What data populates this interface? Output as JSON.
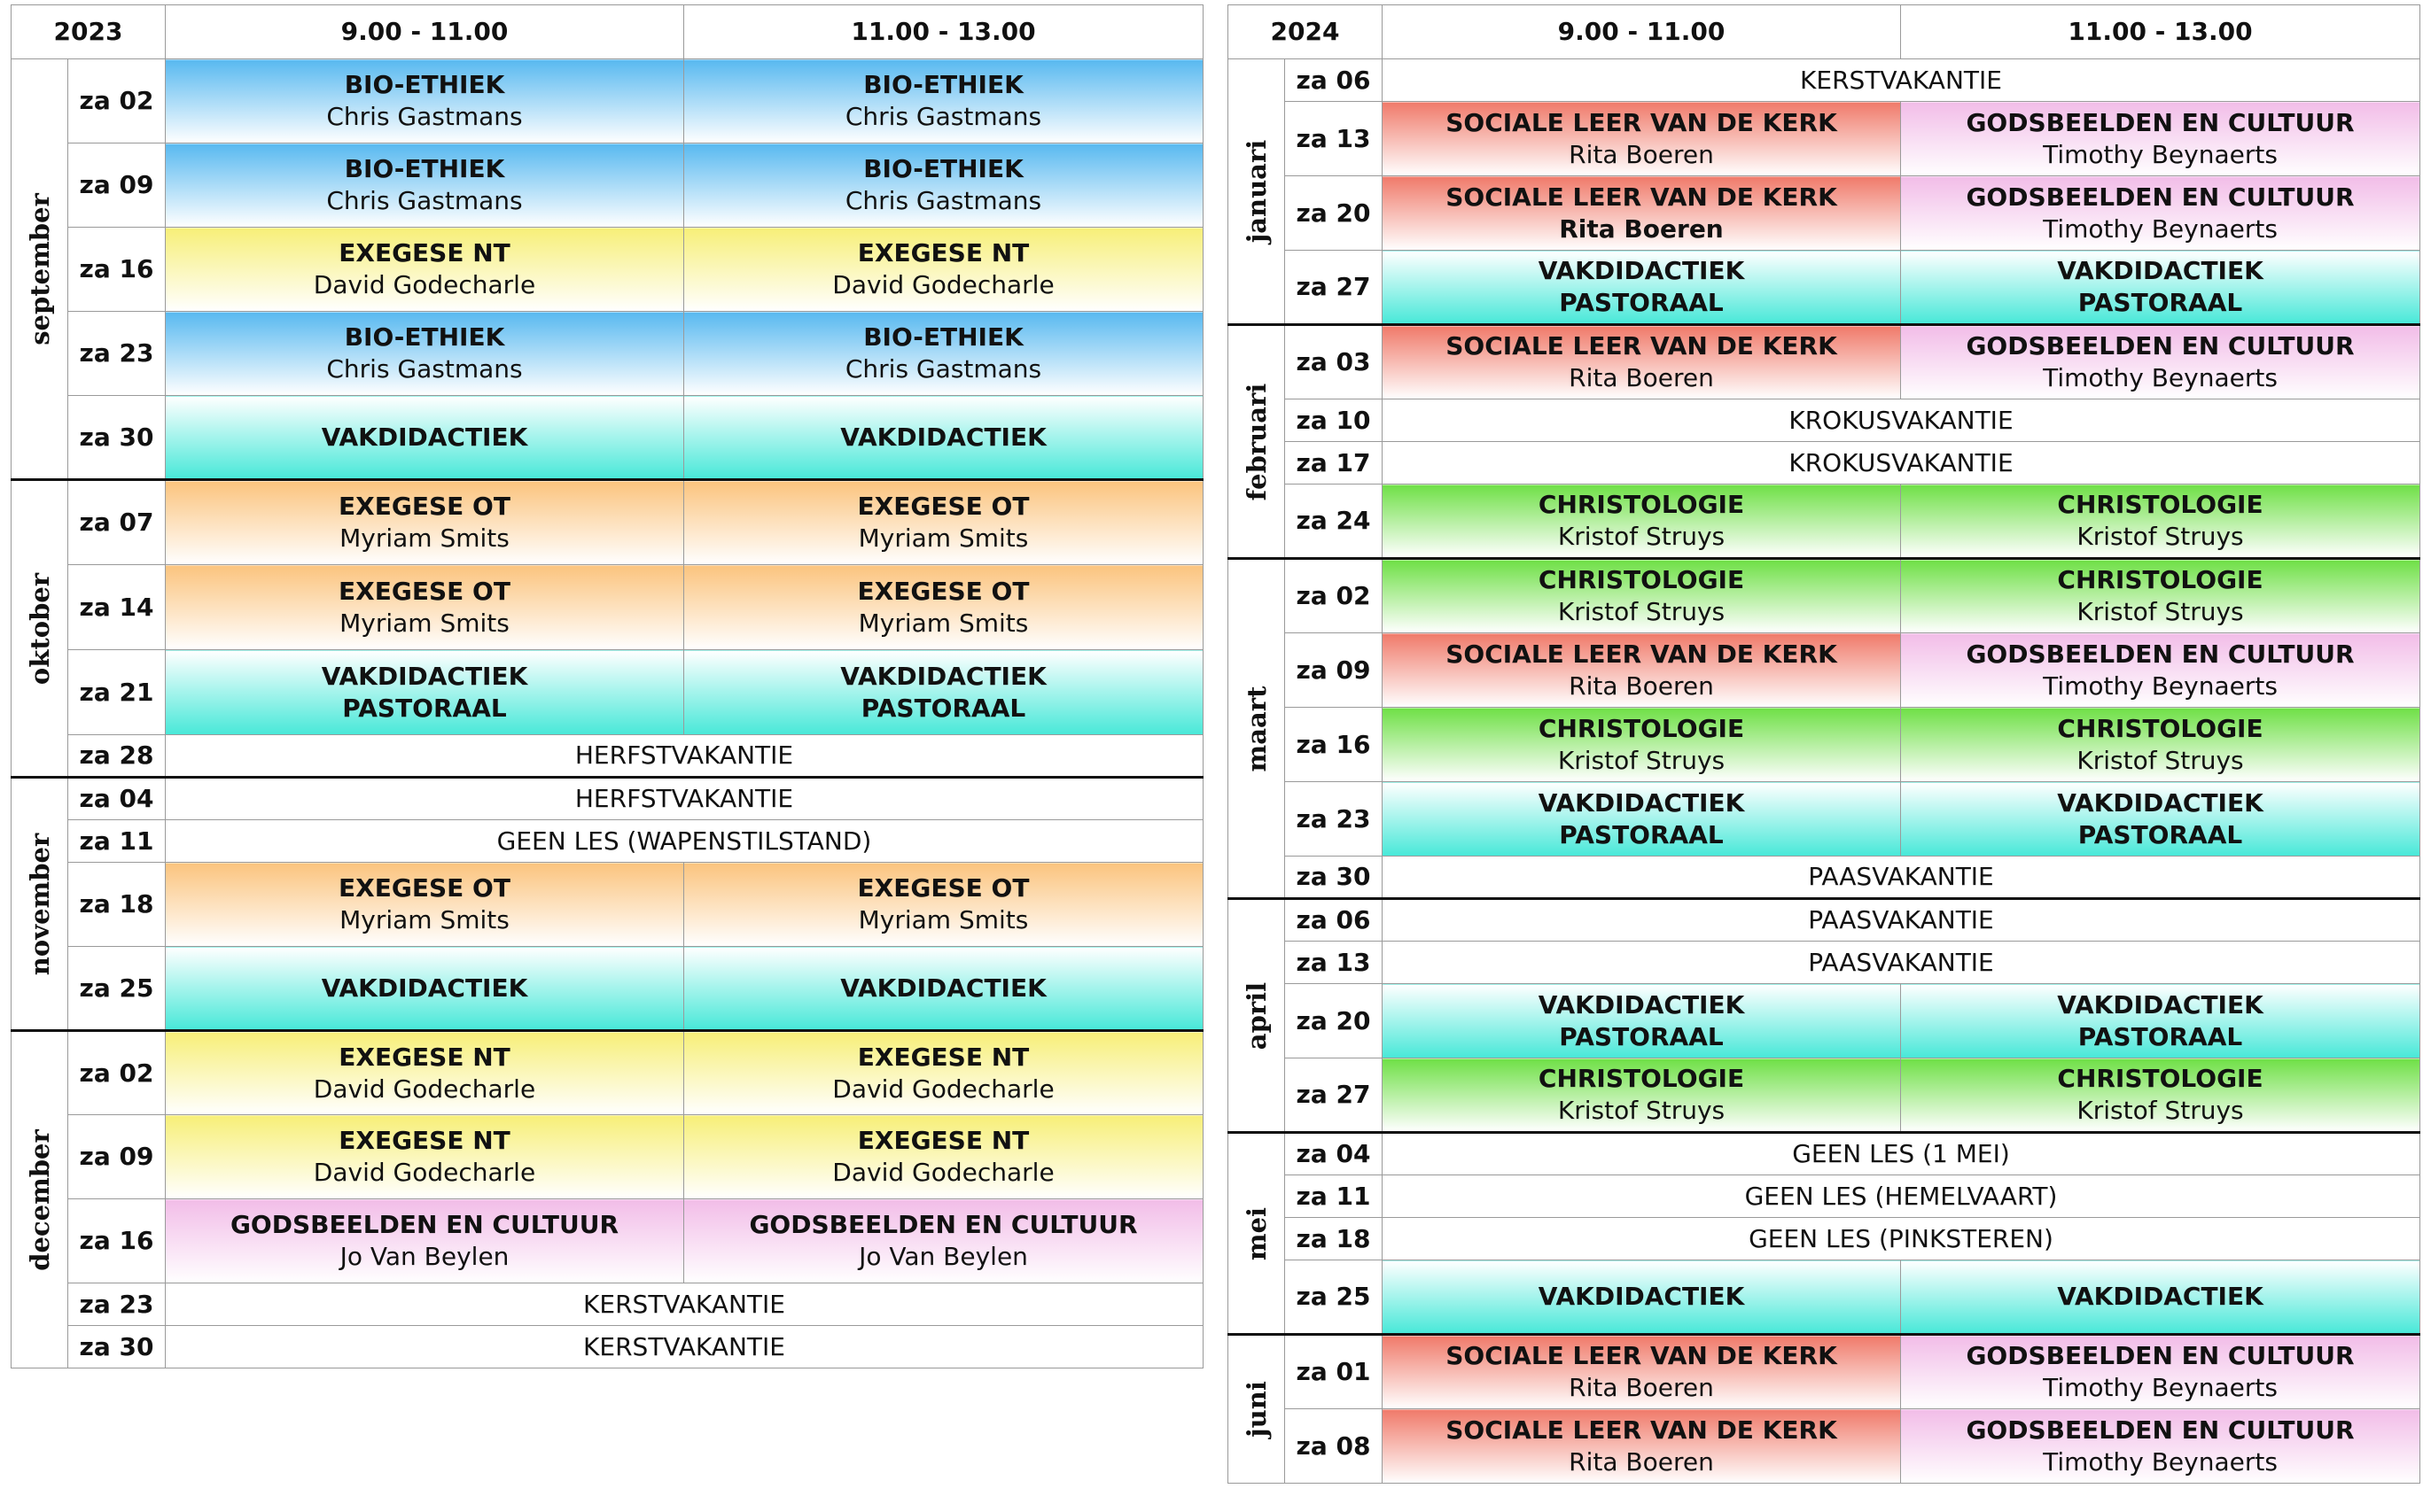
{
  "colors": {
    "c-blue": "#58b9f0",
    "c-yellow": "#f7ef78",
    "c-cyan": "#48e8d8",
    "c-orange": "#fbc47e",
    "c-pink": "#f2bde8",
    "c-red": "#f07a6a",
    "c-green": "#6fe046"
  },
  "tables": [
    {
      "year": "2023",
      "slot1": "9.00 - 11.00",
      "slot2": "11.00 - 13.00",
      "months": [
        {
          "name": "september",
          "rows": [
            {
              "date": "za 02",
              "h": 95,
              "cells": [
                {
                  "course": "BIO-ETHIEK",
                  "teacher": "Chris Gastmans",
                  "color": "c-blue"
                },
                {
                  "course": "BIO-ETHIEK",
                  "teacher": "Chris Gastmans",
                  "color": "c-blue"
                }
              ]
            },
            {
              "date": "za 09",
              "h": 95,
              "cells": [
                {
                  "course": "BIO-ETHIEK",
                  "teacher": "Chris Gastmans",
                  "color": "c-blue"
                },
                {
                  "course": "BIO-ETHIEK",
                  "teacher": "Chris Gastmans",
                  "color": "c-blue"
                }
              ]
            },
            {
              "date": "za 16",
              "h": 95,
              "cells": [
                {
                  "course": "EXEGESE NT",
                  "teacher": "David Godecharle",
                  "color": "c-yellow"
                },
                {
                  "course": "EXEGESE NT",
                  "teacher": "David Godecharle",
                  "color": "c-yellow"
                }
              ]
            },
            {
              "date": "za 23",
              "h": 95,
              "cells": [
                {
                  "course": "BIO-ETHIEK",
                  "teacher": "Chris Gastmans",
                  "color": "c-blue"
                },
                {
                  "course": "BIO-ETHIEK",
                  "teacher": "Chris Gastmans",
                  "color": "c-blue"
                }
              ]
            },
            {
              "date": "za 30",
              "h": 95,
              "cells": [
                {
                  "course": "VAKDIDACTIEK",
                  "teacher": "",
                  "color": "c-cyan"
                },
                {
                  "course": "VAKDIDACTIEK",
                  "teacher": "",
                  "color": "c-cyan"
                }
              ]
            }
          ]
        },
        {
          "name": "oktober",
          "rows": [
            {
              "date": "za 07",
              "h": 96,
              "cells": [
                {
                  "course": "EXEGESE OT",
                  "teacher": "Myriam Smits",
                  "color": "c-orange"
                },
                {
                  "course": "EXEGESE OT",
                  "teacher": "Myriam Smits",
                  "color": "c-orange"
                }
              ]
            },
            {
              "date": "za 14",
              "h": 96,
              "cells": [
                {
                  "course": "EXEGESE OT",
                  "teacher": "Myriam Smits",
                  "color": "c-orange"
                },
                {
                  "course": "EXEGESE OT",
                  "teacher": "Myriam Smits",
                  "color": "c-orange"
                }
              ]
            },
            {
              "date": "za 21",
              "h": 96,
              "cells": [
                {
                  "course": "VAKDIDACTIEK",
                  "teacher": "PASTORAAL",
                  "teacherBold": true,
                  "color": "c-cyan"
                },
                {
                  "course": "VAKDIDACTIEK",
                  "teacher": "PASTORAAL",
                  "teacherBold": true,
                  "color": "c-cyan"
                }
              ]
            },
            {
              "date": "za 28",
              "h": 48,
              "span": "HERFSTVAKANTIE"
            }
          ]
        },
        {
          "name": "november",
          "rows": [
            {
              "date": "za 04",
              "h": 48,
              "span": "HERFSTVAKANTIE"
            },
            {
              "date": "za 11",
              "h": 48,
              "span": "GEEN LES (WAPENSTILSTAND)"
            },
            {
              "date": "za 18",
              "h": 95,
              "cells": [
                {
                  "course": "EXEGESE OT",
                  "teacher": "Myriam Smits",
                  "color": "c-orange"
                },
                {
                  "course": "EXEGESE OT",
                  "teacher": "Myriam Smits",
                  "color": "c-orange"
                }
              ]
            },
            {
              "date": "za 25",
              "h": 95,
              "cells": [
                {
                  "course": "VAKDIDACTIEK",
                  "teacher": "",
                  "color": "c-cyan"
                },
                {
                  "course": "VAKDIDACTIEK",
                  "teacher": "",
                  "color": "c-cyan"
                }
              ]
            }
          ]
        },
        {
          "name": "december",
          "rows": [
            {
              "date": "za 02",
              "h": 95,
              "cells": [
                {
                  "course": "EXEGESE NT",
                  "teacher": "David Godecharle",
                  "color": "c-yellow"
                },
                {
                  "course": "EXEGESE NT",
                  "teacher": "David Godecharle",
                  "color": "c-yellow"
                }
              ]
            },
            {
              "date": "za 09",
              "h": 95,
              "cells": [
                {
                  "course": "EXEGESE NT",
                  "teacher": "David Godecharle",
                  "color": "c-yellow"
                },
                {
                  "course": "EXEGESE NT",
                  "teacher": "David Godecharle",
                  "color": "c-yellow"
                }
              ]
            },
            {
              "date": "za 16",
              "h": 95,
              "cells": [
                {
                  "course": "GODSBEELDEN EN CULTUUR",
                  "teacher": "Jo Van Beylen",
                  "color": "c-pink"
                },
                {
                  "course": "GODSBEELDEN EN CULTUUR",
                  "teacher": "Jo Van Beylen",
                  "color": "c-pink"
                }
              ]
            },
            {
              "date": "za 23",
              "h": 48,
              "span": "KERSTVAKANTIE"
            },
            {
              "date": "za 30",
              "h": 48,
              "span": "KERSTVAKANTIE"
            }
          ]
        }
      ]
    },
    {
      "year": "2024",
      "slot1": "9.00 - 11.00",
      "slot2": "11.00 - 13.00",
      "months": [
        {
          "name": "januari",
          "rows": [
            {
              "date": "za 06",
              "h": 48,
              "span": "KERSTVAKANTIE"
            },
            {
              "date": "za 13",
              "h": 84,
              "cells": [
                {
                  "course": "SOCIALE LEER VAN DE KERK",
                  "teacher": "Rita Boeren",
                  "color": "c-red"
                },
                {
                  "course": "GODSBEELDEN EN CULTUUR",
                  "teacher": "Timothy Beynaerts",
                  "color": "c-pink"
                }
              ]
            },
            {
              "date": "za 20",
              "h": 84,
              "cells": [
                {
                  "course": "SOCIALE LEER VAN DE KERK",
                  "teacher": "Rita Boeren",
                  "teacherBold": true,
                  "color": "c-red"
                },
                {
                  "course": "GODSBEELDEN EN CULTUUR",
                  "teacher": "Timothy Beynaerts",
                  "color": "c-pink"
                }
              ]
            },
            {
              "date": "za 27",
              "h": 84,
              "cells": [
                {
                  "course": "VAKDIDACTIEK",
                  "teacher": "PASTORAAL",
                  "teacherBold": true,
                  "color": "c-cyan"
                },
                {
                  "course": "VAKDIDACTIEK",
                  "teacher": "PASTORAAL",
                  "teacherBold": true,
                  "color": "c-cyan"
                }
              ]
            }
          ]
        },
        {
          "name": "februari",
          "rows": [
            {
              "date": "za 03",
              "h": 84,
              "cells": [
                {
                  "course": "SOCIALE LEER VAN DE KERK",
                  "teacher": "Rita Boeren",
                  "color": "c-red"
                },
                {
                  "course": "GODSBEELDEN EN CULTUUR",
                  "teacher": "Timothy Beynaerts",
                  "color": "c-pink"
                }
              ]
            },
            {
              "date": "za 10",
              "h": 48,
              "span": "KROKUSVAKANTIE"
            },
            {
              "date": "za 17",
              "h": 48,
              "span": "KROKUSVAKANTIE"
            },
            {
              "date": "za 24",
              "h": 84,
              "cells": [
                {
                  "course": "CHRISTOLOGIE",
                  "teacher": "Kristof Struys",
                  "color": "c-green"
                },
                {
                  "course": "CHRISTOLOGIE",
                  "teacher": "Kristof Struys",
                  "color": "c-green"
                }
              ]
            }
          ]
        },
        {
          "name": "maart",
          "rows": [
            {
              "date": "za 02",
              "h": 84,
              "cells": [
                {
                  "course": "CHRISTOLOGIE",
                  "teacher": "Kristof Struys",
                  "color": "c-green"
                },
                {
                  "course": "CHRISTOLOGIE",
                  "teacher": "Kristof Struys",
                  "color": "c-green"
                }
              ]
            },
            {
              "date": "za 09",
              "h": 84,
              "cells": [
                {
                  "course": "SOCIALE LEER VAN DE KERK",
                  "teacher": "Rita Boeren",
                  "color": "c-red"
                },
                {
                  "course": "GODSBEELDEN EN CULTUUR",
                  "teacher": "Timothy Beynaerts",
                  "color": "c-pink"
                }
              ]
            },
            {
              "date": "za 16",
              "h": 84,
              "cells": [
                {
                  "course": "CHRISTOLOGIE",
                  "teacher": "Kristof Struys",
                  "color": "c-green"
                },
                {
                  "course": "CHRISTOLOGIE",
                  "teacher": "Kristof Struys",
                  "color": "c-green"
                }
              ]
            },
            {
              "date": "za 23",
              "h": 84,
              "cells": [
                {
                  "course": "VAKDIDACTIEK",
                  "teacher": "PASTORAAL",
                  "teacherBold": true,
                  "color": "c-cyan"
                },
                {
                  "course": "VAKDIDACTIEK",
                  "teacher": "PASTORAAL",
                  "teacherBold": true,
                  "color": "c-cyan"
                }
              ]
            },
            {
              "date": "za 30",
              "h": 48,
              "span": "PAASVAKANTIE"
            }
          ]
        },
        {
          "name": "april",
          "rows": [
            {
              "date": "za 06",
              "h": 48,
              "span": "PAASVAKANTIE"
            },
            {
              "date": "za 13",
              "h": 48,
              "span": "PAASVAKANTIE"
            },
            {
              "date": "za 20",
              "h": 84,
              "cells": [
                {
                  "course": "VAKDIDACTIEK",
                  "teacher": "PASTORAAL",
                  "teacherBold": true,
                  "color": "c-cyan"
                },
                {
                  "course": "VAKDIDACTIEK",
                  "teacher": "PASTORAAL",
                  "teacherBold": true,
                  "color": "c-cyan"
                }
              ]
            },
            {
              "date": "za 27",
              "h": 84,
              "cells": [
                {
                  "course": "CHRISTOLOGIE",
                  "teacher": "Kristof Struys",
                  "color": "c-green"
                },
                {
                  "course": "CHRISTOLOGIE",
                  "teacher": "Kristof Struys",
                  "color": "c-green"
                }
              ]
            }
          ]
        },
        {
          "name": "mei",
          "rows": [
            {
              "date": "za 04",
              "h": 48,
              "span": "GEEN LES (1 MEI)"
            },
            {
              "date": "za 11",
              "h": 48,
              "span": "GEEN LES (HEMELVAART)"
            },
            {
              "date": "za 18",
              "h": 48,
              "span": "GEEN LES (PINKSTEREN)"
            },
            {
              "date": "za 25",
              "h": 84,
              "cells": [
                {
                  "course": "VAKDIDACTIEK",
                  "teacher": "",
                  "color": "c-cyan"
                },
                {
                  "course": "VAKDIDACTIEK",
                  "teacher": "",
                  "color": "c-cyan"
                }
              ]
            }
          ]
        },
        {
          "name": "juni",
          "rows": [
            {
              "date": "za 01",
              "h": 84,
              "cells": [
                {
                  "course": "SOCIALE LEER VAN DE KERK",
                  "teacher": "Rita Boeren",
                  "color": "c-red"
                },
                {
                  "course": "GODSBEELDEN EN CULTUUR",
                  "teacher": "Timothy Beynaerts",
                  "color": "c-pink"
                }
              ]
            },
            {
              "date": "za 08",
              "h": 84,
              "cells": [
                {
                  "course": "SOCIALE LEER VAN DE KERK",
                  "teacher": "Rita Boeren",
                  "color": "c-red"
                },
                {
                  "course": "GODSBEELDEN EN CULTUUR",
                  "teacher": "Timothy Beynaerts",
                  "color": "c-pink"
                }
              ]
            }
          ]
        }
      ]
    }
  ]
}
